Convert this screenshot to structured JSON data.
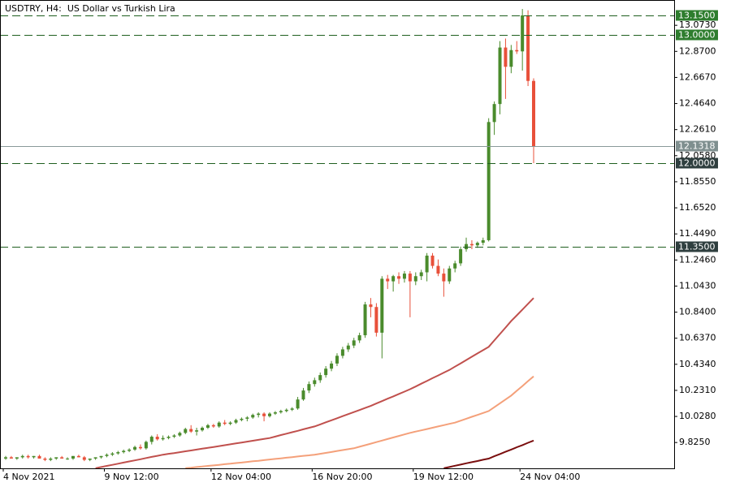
{
  "chart_data": {
    "type": "candlestick",
    "title": "USDTRY, H4:  US Dollar vs Turkish Lira",
    "up_color": "#4a8b2c",
    "down_color": "#e8503a",
    "categories": [
      "4 Nov 2021",
      null,
      null,
      null,
      null,
      null,
      null,
      null,
      null,
      null,
      null,
      null,
      null,
      null,
      null,
      null,
      null,
      null,
      "9 Nov 12:00",
      null,
      null,
      null,
      null,
      null,
      null,
      null,
      null,
      null,
      null,
      null,
      null,
      null,
      null,
      null,
      null,
      null,
      null,
      "12 Nov 04:00",
      null,
      null,
      null,
      null,
      null,
      null,
      null,
      null,
      null,
      null,
      null,
      null,
      null,
      null,
      null,
      null,
      null,
      "16 Nov 20:00",
      null,
      null,
      null,
      null,
      null,
      null,
      null,
      null,
      null,
      null,
      null,
      null,
      null,
      null,
      null,
      null,
      null,
      "19 Nov 12:00",
      null,
      null,
      null,
      null,
      null,
      null,
      null,
      null,
      null,
      null,
      null,
      null,
      null,
      null,
      null,
      null,
      null,
      null,
      "24 Nov 04:00",
      null,
      null
    ],
    "open": [
      9.7,
      9.71,
      9.7,
      9.71,
      9.72,
      9.71,
      9.72,
      9.7,
      9.69,
      9.7,
      9.71,
      9.7,
      9.7,
      9.72,
      9.71,
      9.69,
      9.7,
      9.71,
      9.72,
      9.73,
      9.74,
      9.75,
      9.76,
      9.77,
      9.79,
      9.78,
      9.83,
      9.87,
      9.85,
      9.86,
      9.87,
      9.88,
      9.9,
      9.93,
      9.91,
      9.92,
      9.94,
      9.96,
      9.95,
      9.98,
      9.97,
      9.98,
      10.0,
      10.01,
      10.02,
      10.04,
      10.05,
      10.03,
      10.05,
      10.06,
      10.07,
      10.08,
      10.09,
      10.16,
      10.23,
      10.28,
      10.31,
      10.35,
      10.4,
      10.44,
      10.5,
      10.55,
      10.58,
      10.62,
      10.66,
      10.9,
      10.88,
      10.68,
      11.1,
      11.08,
      11.12,
      11.1,
      11.14,
      11.08,
      11.12,
      11.15,
      11.28,
      11.2,
      11.14,
      11.08,
      11.18,
      11.22,
      11.33,
      11.37,
      11.36,
      11.38,
      11.4,
      12.32,
      12.46,
      12.9,
      12.75,
      12.88,
      12.87,
      13.15,
      12.64
    ],
    "high": [
      9.72,
      9.72,
      9.71,
      9.73,
      9.73,
      9.72,
      9.73,
      9.71,
      9.71,
      9.71,
      9.72,
      9.71,
      9.72,
      9.73,
      9.72,
      9.7,
      9.71,
      9.72,
      9.74,
      9.75,
      9.76,
      9.77,
      9.78,
      9.8,
      9.81,
      9.84,
      9.88,
      9.89,
      9.88,
      9.88,
      9.89,
      9.91,
      9.94,
      9.96,
      9.94,
      9.95,
      9.97,
      9.97,
      9.99,
      10.0,
      9.99,
      10.01,
      10.02,
      10.03,
      10.05,
      10.06,
      10.06,
      10.06,
      10.07,
      10.08,
      10.09,
      10.1,
      10.18,
      10.25,
      10.3,
      10.33,
      10.37,
      10.42,
      10.46,
      10.52,
      10.57,
      10.6,
      10.64,
      10.68,
      10.92,
      10.95,
      10.91,
      11.12,
      11.13,
      11.13,
      11.15,
      11.16,
      11.16,
      11.15,
      11.17,
      11.3,
      11.3,
      11.25,
      11.18,
      11.2,
      11.24,
      11.35,
      11.42,
      11.4,
      11.39,
      11.42,
      12.35,
      12.48,
      12.95,
      12.97,
      12.92,
      12.95,
      13.2,
      13.19,
      12.66
    ],
    "low": [
      9.69,
      9.7,
      9.69,
      9.7,
      9.7,
      9.7,
      9.7,
      9.68,
      9.68,
      9.69,
      9.7,
      9.69,
      9.69,
      9.71,
      9.68,
      9.68,
      9.69,
      9.7,
      9.71,
      9.72,
      9.73,
      9.74,
      9.75,
      9.76,
      9.77,
      9.77,
      9.81,
      9.84,
      9.84,
      9.85,
      9.86,
      9.87,
      9.89,
      9.9,
      9.88,
      9.91,
      9.93,
      9.94,
      9.94,
      9.96,
      9.96,
      9.97,
      9.99,
      9.99,
      10.01,
      10.02,
      9.99,
      10.02,
      10.04,
      10.05,
      10.06,
      10.07,
      10.08,
      10.15,
      10.21,
      10.26,
      10.29,
      10.33,
      10.38,
      10.42,
      10.48,
      10.53,
      10.56,
      10.6,
      10.64,
      10.8,
      10.65,
      10.48,
      11.02,
      11.0,
      11.06,
      11.07,
      10.8,
      11.05,
      11.09,
      11.08,
      11.18,
      11.12,
      10.96,
      11.06,
      11.15,
      11.2,
      11.31,
      11.33,
      11.34,
      11.36,
      11.39,
      12.22,
      12.38,
      12.5,
      12.7,
      12.85,
      12.72,
      12.6,
      12.0
    ],
    "close": [
      9.71,
      9.7,
      9.71,
      9.72,
      9.71,
      9.72,
      9.7,
      9.69,
      9.7,
      9.71,
      9.7,
      9.7,
      9.72,
      9.71,
      9.69,
      9.7,
      9.71,
      9.72,
      9.73,
      9.74,
      9.75,
      9.76,
      9.77,
      9.79,
      9.78,
      9.83,
      9.87,
      9.85,
      9.86,
      9.87,
      9.88,
      9.9,
      9.93,
      9.91,
      9.92,
      9.94,
      9.96,
      9.95,
      9.98,
      9.97,
      9.98,
      10.0,
      10.01,
      10.02,
      10.04,
      10.05,
      10.03,
      10.05,
      10.06,
      10.07,
      10.08,
      10.09,
      10.16,
      10.23,
      10.28,
      10.31,
      10.35,
      10.4,
      10.44,
      10.5,
      10.55,
      10.58,
      10.62,
      10.66,
      10.9,
      10.88,
      10.68,
      11.1,
      11.08,
      11.12,
      11.1,
      11.14,
      11.08,
      11.12,
      11.15,
      11.28,
      11.2,
      11.14,
      11.08,
      11.18,
      11.22,
      11.33,
      11.37,
      11.36,
      11.38,
      11.4,
      12.32,
      12.46,
      12.9,
      12.75,
      12.88,
      12.87,
      13.15,
      12.64,
      12.13
    ],
    "overlays": [
      {
        "color": "#c0504d",
        "values": [
          null,
          null,
          null,
          null,
          null,
          null,
          null,
          null,
          null,
          null,
          null,
          null,
          null,
          null,
          null,
          null,
          9.625,
          9.634,
          9.643,
          9.651,
          9.66,
          9.669,
          9.678,
          9.686,
          9.695,
          9.704,
          9.713,
          9.721,
          9.73,
          9.737,
          9.743,
          9.75,
          9.757,
          9.763,
          9.77,
          9.777,
          9.783,
          9.79,
          9.797,
          9.804,
          9.811,
          9.818,
          9.825,
          9.832,
          9.839,
          9.846,
          9.853,
          9.86,
          9.871,
          9.883,
          9.894,
          9.905,
          9.916,
          9.928,
          9.939,
          9.95,
          9.966,
          9.982,
          9.998,
          10.014,
          10.03,
          10.046,
          10.062,
          10.078,
          10.094,
          10.11,
          10.129,
          10.147,
          10.166,
          10.184,
          10.203,
          10.221,
          10.24,
          10.261,
          10.283,
          10.304,
          10.326,
          10.347,
          10.369,
          10.39,
          10.416,
          10.441,
          10.467,
          10.493,
          10.519,
          10.544,
          10.57,
          10.62,
          10.67,
          10.72,
          10.77,
          10.815,
          10.86,
          10.905,
          10.95
        ]
      },
      {
        "color": "#f4a07a",
        "values": [
          null,
          null,
          null,
          null,
          null,
          null,
          null,
          null,
          null,
          null,
          null,
          null,
          null,
          null,
          null,
          null,
          null,
          null,
          null,
          null,
          null,
          null,
          null,
          null,
          null,
          null,
          null,
          null,
          null,
          null,
          null,
          null,
          9.625,
          9.629,
          9.634,
          9.638,
          9.643,
          9.647,
          9.651,
          9.656,
          9.66,
          9.665,
          9.669,
          9.674,
          9.679,
          9.683,
          9.688,
          9.693,
          9.697,
          9.702,
          9.707,
          9.711,
          9.716,
          9.721,
          9.725,
          9.73,
          9.737,
          9.744,
          9.751,
          9.759,
          9.766,
          9.773,
          9.78,
          9.792,
          9.804,
          9.816,
          9.828,
          9.84,
          9.852,
          9.864,
          9.876,
          9.888,
          9.9,
          9.91,
          9.92,
          9.93,
          9.94,
          9.95,
          9.96,
          9.97,
          9.98,
          9.995,
          10.01,
          10.025,
          10.04,
          10.055,
          10.07,
          10.1,
          10.13,
          10.16,
          10.19,
          10.228,
          10.265,
          10.303,
          10.34
        ]
      },
      {
        "color": "#7a0e0e",
        "values": [
          null,
          null,
          null,
          null,
          null,
          null,
          null,
          null,
          null,
          null,
          null,
          null,
          null,
          null,
          null,
          null,
          null,
          null,
          null,
          null,
          null,
          null,
          null,
          null,
          null,
          null,
          null,
          null,
          null,
          null,
          null,
          null,
          null,
          null,
          null,
          null,
          null,
          null,
          null,
          null,
          null,
          null,
          null,
          null,
          null,
          null,
          null,
          null,
          null,
          null,
          null,
          null,
          null,
          null,
          null,
          null,
          null,
          null,
          null,
          null,
          null,
          null,
          null,
          null,
          null,
          null,
          null,
          null,
          null,
          null,
          null,
          null,
          null,
          null,
          null,
          null,
          null,
          null,
          9.625,
          9.634,
          9.644,
          9.653,
          9.663,
          9.672,
          9.681,
          9.691,
          9.7,
          9.718,
          9.735,
          9.753,
          9.77,
          9.788,
          9.805,
          9.823,
          9.84
        ]
      }
    ],
    "ylim": [
      9.624,
      13.27
    ],
    "yticks": [
      {
        "value": 13.073,
        "label": "13.0730"
      },
      {
        "value": 12.87,
        "label": "12.8700"
      },
      {
        "value": 12.667,
        "label": "12.6670"
      },
      {
        "value": 12.464,
        "label": "12.4640"
      },
      {
        "value": 12.261,
        "label": "12.2610"
      },
      {
        "value": 12.058,
        "label": "12.0580"
      },
      {
        "value": 11.855,
        "label": "11.8550"
      },
      {
        "value": 11.652,
        "label": "11.6520"
      },
      {
        "value": 11.449,
        "label": "11.4490"
      },
      {
        "value": 11.246,
        "label": "11.2460"
      },
      {
        "value": 11.043,
        "label": "11.0430"
      },
      {
        "value": 10.84,
        "label": "10.8400"
      },
      {
        "value": 10.637,
        "label": "10.6370"
      },
      {
        "value": 10.434,
        "label": "10.4340"
      },
      {
        "value": 10.231,
        "label": "10.2310"
      },
      {
        "value": 10.028,
        "label": "10.0280"
      },
      {
        "value": 9.825,
        "label": "9.8250"
      }
    ],
    "levels": [
      {
        "value": 13.15,
        "label": "13.1500",
        "color": "#2e7d2e"
      },
      {
        "value": 13.0,
        "label": "13.0000",
        "color": "#2e7d2e"
      },
      {
        "value": 12.0,
        "label": "12.0000",
        "color": "#2f3f3f"
      },
      {
        "value": 11.35,
        "label": "11.3500",
        "color": "#2f3f3f"
      }
    ],
    "last_price": {
      "value": 12.1318,
      "label": "12.1318",
      "color": "#7f8f8f"
    }
  }
}
